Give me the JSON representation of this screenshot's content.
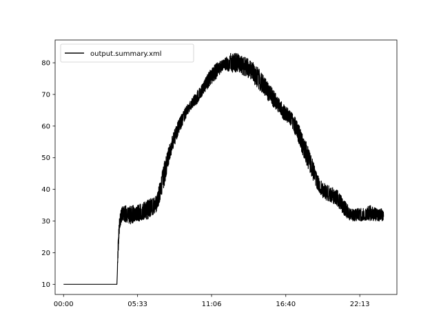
{
  "chart_data": {
    "type": "line",
    "title": "",
    "xlabel": "",
    "ylabel": "",
    "x_unit": "time-of-day",
    "xlim": [
      "-00:38",
      "25:00"
    ],
    "ylim": [
      6.8,
      87.2
    ],
    "xticks": [
      "00:00",
      "05:33",
      "11:06",
      "16:40",
      "22:13"
    ],
    "yticks": [
      10,
      20,
      30,
      40,
      50,
      60,
      70,
      80
    ],
    "grid": false,
    "legend": {
      "position": "top-left",
      "entries": [
        "output.summary.xml"
      ]
    },
    "series": [
      {
        "name": "output.summary.xml",
        "color": "#000000",
        "noise_band": "data values oscillate rapidly within the shown low/high envelope",
        "x": [
          "00:00",
          "01:00",
          "02:00",
          "03:00",
          "04:00",
          "04:06",
          "04:12",
          "04:18",
          "04:30",
          "05:00",
          "05:30",
          "06:00",
          "06:30",
          "07:00",
          "07:30",
          "08:00",
          "08:30",
          "09:00",
          "09:30",
          "10:00",
          "10:30",
          "11:00",
          "11:30",
          "12:00",
          "12:30",
          "13:00",
          "13:30",
          "14:00",
          "14:30",
          "15:00",
          "15:30",
          "16:00",
          "16:30",
          "17:00",
          "17:30",
          "18:00",
          "18:30",
          "19:00",
          "19:30",
          "20:00",
          "20:30",
          "21:00",
          "21:30",
          "22:00",
          "22:30",
          "23:00",
          "23:30",
          "24:00"
        ],
        "low": [
          10,
          10,
          10,
          10,
          10,
          20,
          27,
          29,
          30,
          29,
          30,
          30,
          31,
          33,
          40,
          50,
          56,
          61,
          65,
          67,
          70,
          73,
          75,
          78,
          77,
          77,
          76,
          75,
          72,
          70,
          67,
          65,
          62,
          60,
          56,
          50,
          45,
          40,
          37,
          36,
          35,
          32,
          30,
          30,
          30,
          30,
          30,
          30
        ],
        "high": [
          10,
          10,
          10,
          10,
          10,
          25,
          32,
          34,
          35,
          35,
          35,
          36,
          37,
          38,
          48,
          55,
          61,
          65,
          68,
          71,
          74,
          78,
          80,
          81,
          83,
          83,
          82,
          81,
          79,
          76,
          73,
          70,
          67,
          65,
          62,
          57,
          52,
          45,
          42,
          41,
          40,
          37,
          34,
          34,
          34,
          35,
          34,
          34
        ]
      }
    ]
  }
}
